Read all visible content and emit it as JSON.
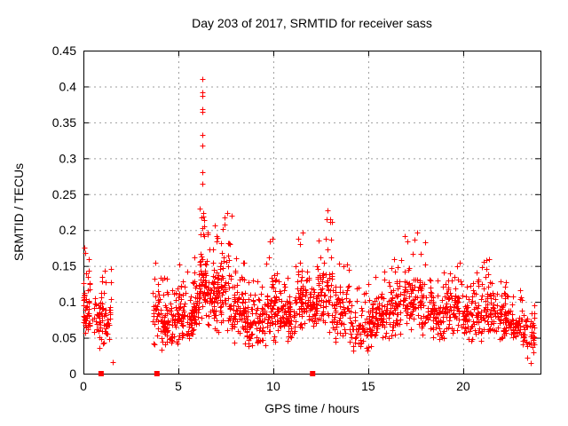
{
  "chart": {
    "title": "Day 203 of 2017, SRMTID for receiver sass",
    "xlabel": "GPS time / hours",
    "ylabel": "SRMTID / TECUs"
  },
  "chart_data": {
    "type": "scatter",
    "title": "Day 203 of 2017, SRMTID for receiver sass",
    "xlabel": "GPS time / hours",
    "ylabel": "SRMTID / TECUs",
    "xlim": [
      0,
      24.07
    ],
    "ylim": [
      0,
      0.45
    ],
    "xticks": [
      [
        0,
        "0"
      ],
      [
        5,
        "5"
      ],
      [
        10,
        "10"
      ],
      [
        15,
        "15"
      ],
      [
        20,
        "20"
      ]
    ],
    "yticks": [
      [
        0,
        "0"
      ],
      [
        0.05,
        "0.05"
      ],
      [
        0.1,
        "0.1"
      ],
      [
        0.15,
        "0.15"
      ],
      [
        0.2,
        "0.2"
      ],
      [
        0.25,
        "0.25"
      ],
      [
        0.3,
        "0.3"
      ],
      [
        0.35,
        "0.35"
      ],
      [
        0.4,
        "0.4"
      ],
      [
        0.45,
        "0.45"
      ]
    ],
    "grid": true,
    "legend": "none",
    "style": {
      "marker_color": "#ff0000",
      "marker_shape": "plus",
      "marker_size": 7,
      "grid_color": "#9e9e9e",
      "axis_color": "#000000",
      "background": "#ffffff"
    },
    "peak_points": [
      [
        6.26,
        0.41
      ],
      [
        6.27,
        0.392
      ],
      [
        6.25,
        0.387
      ],
      [
        6.26,
        0.368
      ],
      [
        6.28,
        0.365
      ],
      [
        6.24,
        0.333
      ],
      [
        6.27,
        0.318
      ],
      [
        6.25,
        0.281
      ],
      [
        6.26,
        0.264
      ],
      [
        7.55,
        0.224
      ],
      [
        7.45,
        0.218
      ],
      [
        12.86,
        0.227
      ],
      [
        12.82,
        0.215
      ],
      [
        9.95,
        0.188
      ],
      [
        11.55,
        0.197
      ],
      [
        16.92,
        0.192
      ],
      [
        17.58,
        0.197
      ],
      [
        0.05,
        0.176
      ],
      [
        0.08,
        0.168
      ],
      [
        1.54,
        0.016
      ],
      [
        21.35,
        0.16
      ],
      [
        23.55,
        0.015
      ]
    ],
    "axis_gap_markers": {
      "shape": "filled-square",
      "color": "#ff0000",
      "size": 6,
      "y": 0,
      "x": [
        0.93,
        3.87,
        12.07
      ]
    },
    "density_bins": [
      {
        "x0": 0.0,
        "x1": 0.35,
        "n": 50,
        "lo": 0.045,
        "hi": 0.125,
        "top": 0.172,
        "tf": 0.18
      },
      {
        "x0": 0.45,
        "x1": 0.8,
        "n": 14,
        "lo": 0.05,
        "hi": 0.11,
        "top": 0.13,
        "tf": 0.1
      },
      {
        "x0": 0.8,
        "x1": 1.45,
        "n": 60,
        "lo": 0.028,
        "hi": 0.12,
        "top": 0.16,
        "tf": 0.12
      },
      {
        "x0": 3.65,
        "x1": 4.05,
        "n": 35,
        "lo": 0.035,
        "hi": 0.13,
        "top": 0.155,
        "tf": 0.1
      },
      {
        "x0": 4.05,
        "x1": 5.0,
        "n": 85,
        "lo": 0.03,
        "hi": 0.11,
        "top": 0.14,
        "tf": 0.08
      },
      {
        "x0": 5.0,
        "x1": 5.8,
        "n": 75,
        "lo": 0.04,
        "hi": 0.12,
        "top": 0.155,
        "tf": 0.1
      },
      {
        "x0": 5.8,
        "x1": 6.1,
        "n": 40,
        "lo": 0.05,
        "hi": 0.14,
        "top": 0.165,
        "tf": 0.12
      },
      {
        "x0": 6.1,
        "x1": 6.4,
        "n": 45,
        "lo": 0.07,
        "hi": 0.19,
        "top": 0.235,
        "tf": 0.15
      },
      {
        "x0": 6.4,
        "x1": 6.9,
        "n": 55,
        "lo": 0.06,
        "hi": 0.17,
        "top": 0.21,
        "tf": 0.12
      },
      {
        "x0": 6.9,
        "x1": 7.8,
        "n": 95,
        "lo": 0.05,
        "hi": 0.18,
        "top": 0.225,
        "tf": 0.14
      },
      {
        "x0": 7.8,
        "x1": 8.5,
        "n": 70,
        "lo": 0.04,
        "hi": 0.13,
        "top": 0.165,
        "tf": 0.1
      },
      {
        "x0": 8.5,
        "x1": 9.6,
        "n": 95,
        "lo": 0.03,
        "hi": 0.11,
        "top": 0.135,
        "tf": 0.07
      },
      {
        "x0": 9.6,
        "x1": 10.2,
        "n": 60,
        "lo": 0.04,
        "hi": 0.13,
        "top": 0.188,
        "tf": 0.1
      },
      {
        "x0": 10.2,
        "x1": 11.2,
        "n": 85,
        "lo": 0.04,
        "hi": 0.12,
        "top": 0.14,
        "tf": 0.08
      },
      {
        "x0": 11.2,
        "x1": 11.8,
        "n": 60,
        "lo": 0.05,
        "hi": 0.15,
        "top": 0.198,
        "tf": 0.12
      },
      {
        "x0": 11.8,
        "x1": 12.3,
        "n": 50,
        "lo": 0.05,
        "hi": 0.13,
        "top": 0.155,
        "tf": 0.1
      },
      {
        "x0": 12.3,
        "x1": 13.1,
        "n": 75,
        "lo": 0.05,
        "hi": 0.16,
        "top": 0.228,
        "tf": 0.13
      },
      {
        "x0": 13.1,
        "x1": 14.0,
        "n": 70,
        "lo": 0.04,
        "hi": 0.13,
        "top": 0.155,
        "tf": 0.09
      },
      {
        "x0": 14.0,
        "x1": 15.2,
        "n": 85,
        "lo": 0.025,
        "hi": 0.1,
        "top": 0.125,
        "tf": 0.07
      },
      {
        "x0": 15.2,
        "x1": 16.2,
        "n": 85,
        "lo": 0.04,
        "hi": 0.12,
        "top": 0.15,
        "tf": 0.09
      },
      {
        "x0": 16.2,
        "x1": 17.2,
        "n": 85,
        "lo": 0.05,
        "hi": 0.14,
        "top": 0.19,
        "tf": 0.11
      },
      {
        "x0": 17.2,
        "x1": 18.0,
        "n": 70,
        "lo": 0.05,
        "hi": 0.14,
        "top": 0.198,
        "tf": 0.11
      },
      {
        "x0": 18.0,
        "x1": 19.0,
        "n": 80,
        "lo": 0.04,
        "hi": 0.12,
        "top": 0.145,
        "tf": 0.08
      },
      {
        "x0": 19.0,
        "x1": 19.9,
        "n": 75,
        "lo": 0.05,
        "hi": 0.13,
        "top": 0.158,
        "tf": 0.09
      },
      {
        "x0": 19.9,
        "x1": 21.0,
        "n": 90,
        "lo": 0.04,
        "hi": 0.12,
        "top": 0.145,
        "tf": 0.08
      },
      {
        "x0": 21.0,
        "x1": 21.6,
        "n": 55,
        "lo": 0.05,
        "hi": 0.13,
        "top": 0.162,
        "tf": 0.1
      },
      {
        "x0": 21.6,
        "x1": 22.6,
        "n": 80,
        "lo": 0.04,
        "hi": 0.115,
        "top": 0.135,
        "tf": 0.07
      },
      {
        "x0": 22.6,
        "x1": 23.3,
        "n": 60,
        "lo": 0.03,
        "hi": 0.1,
        "top": 0.12,
        "tf": 0.07
      },
      {
        "x0": 23.3,
        "x1": 23.75,
        "n": 32,
        "lo": 0.015,
        "hi": 0.09,
        "top": 0.105,
        "tf": 0.06
      }
    ],
    "render_seed": 2017203
  }
}
